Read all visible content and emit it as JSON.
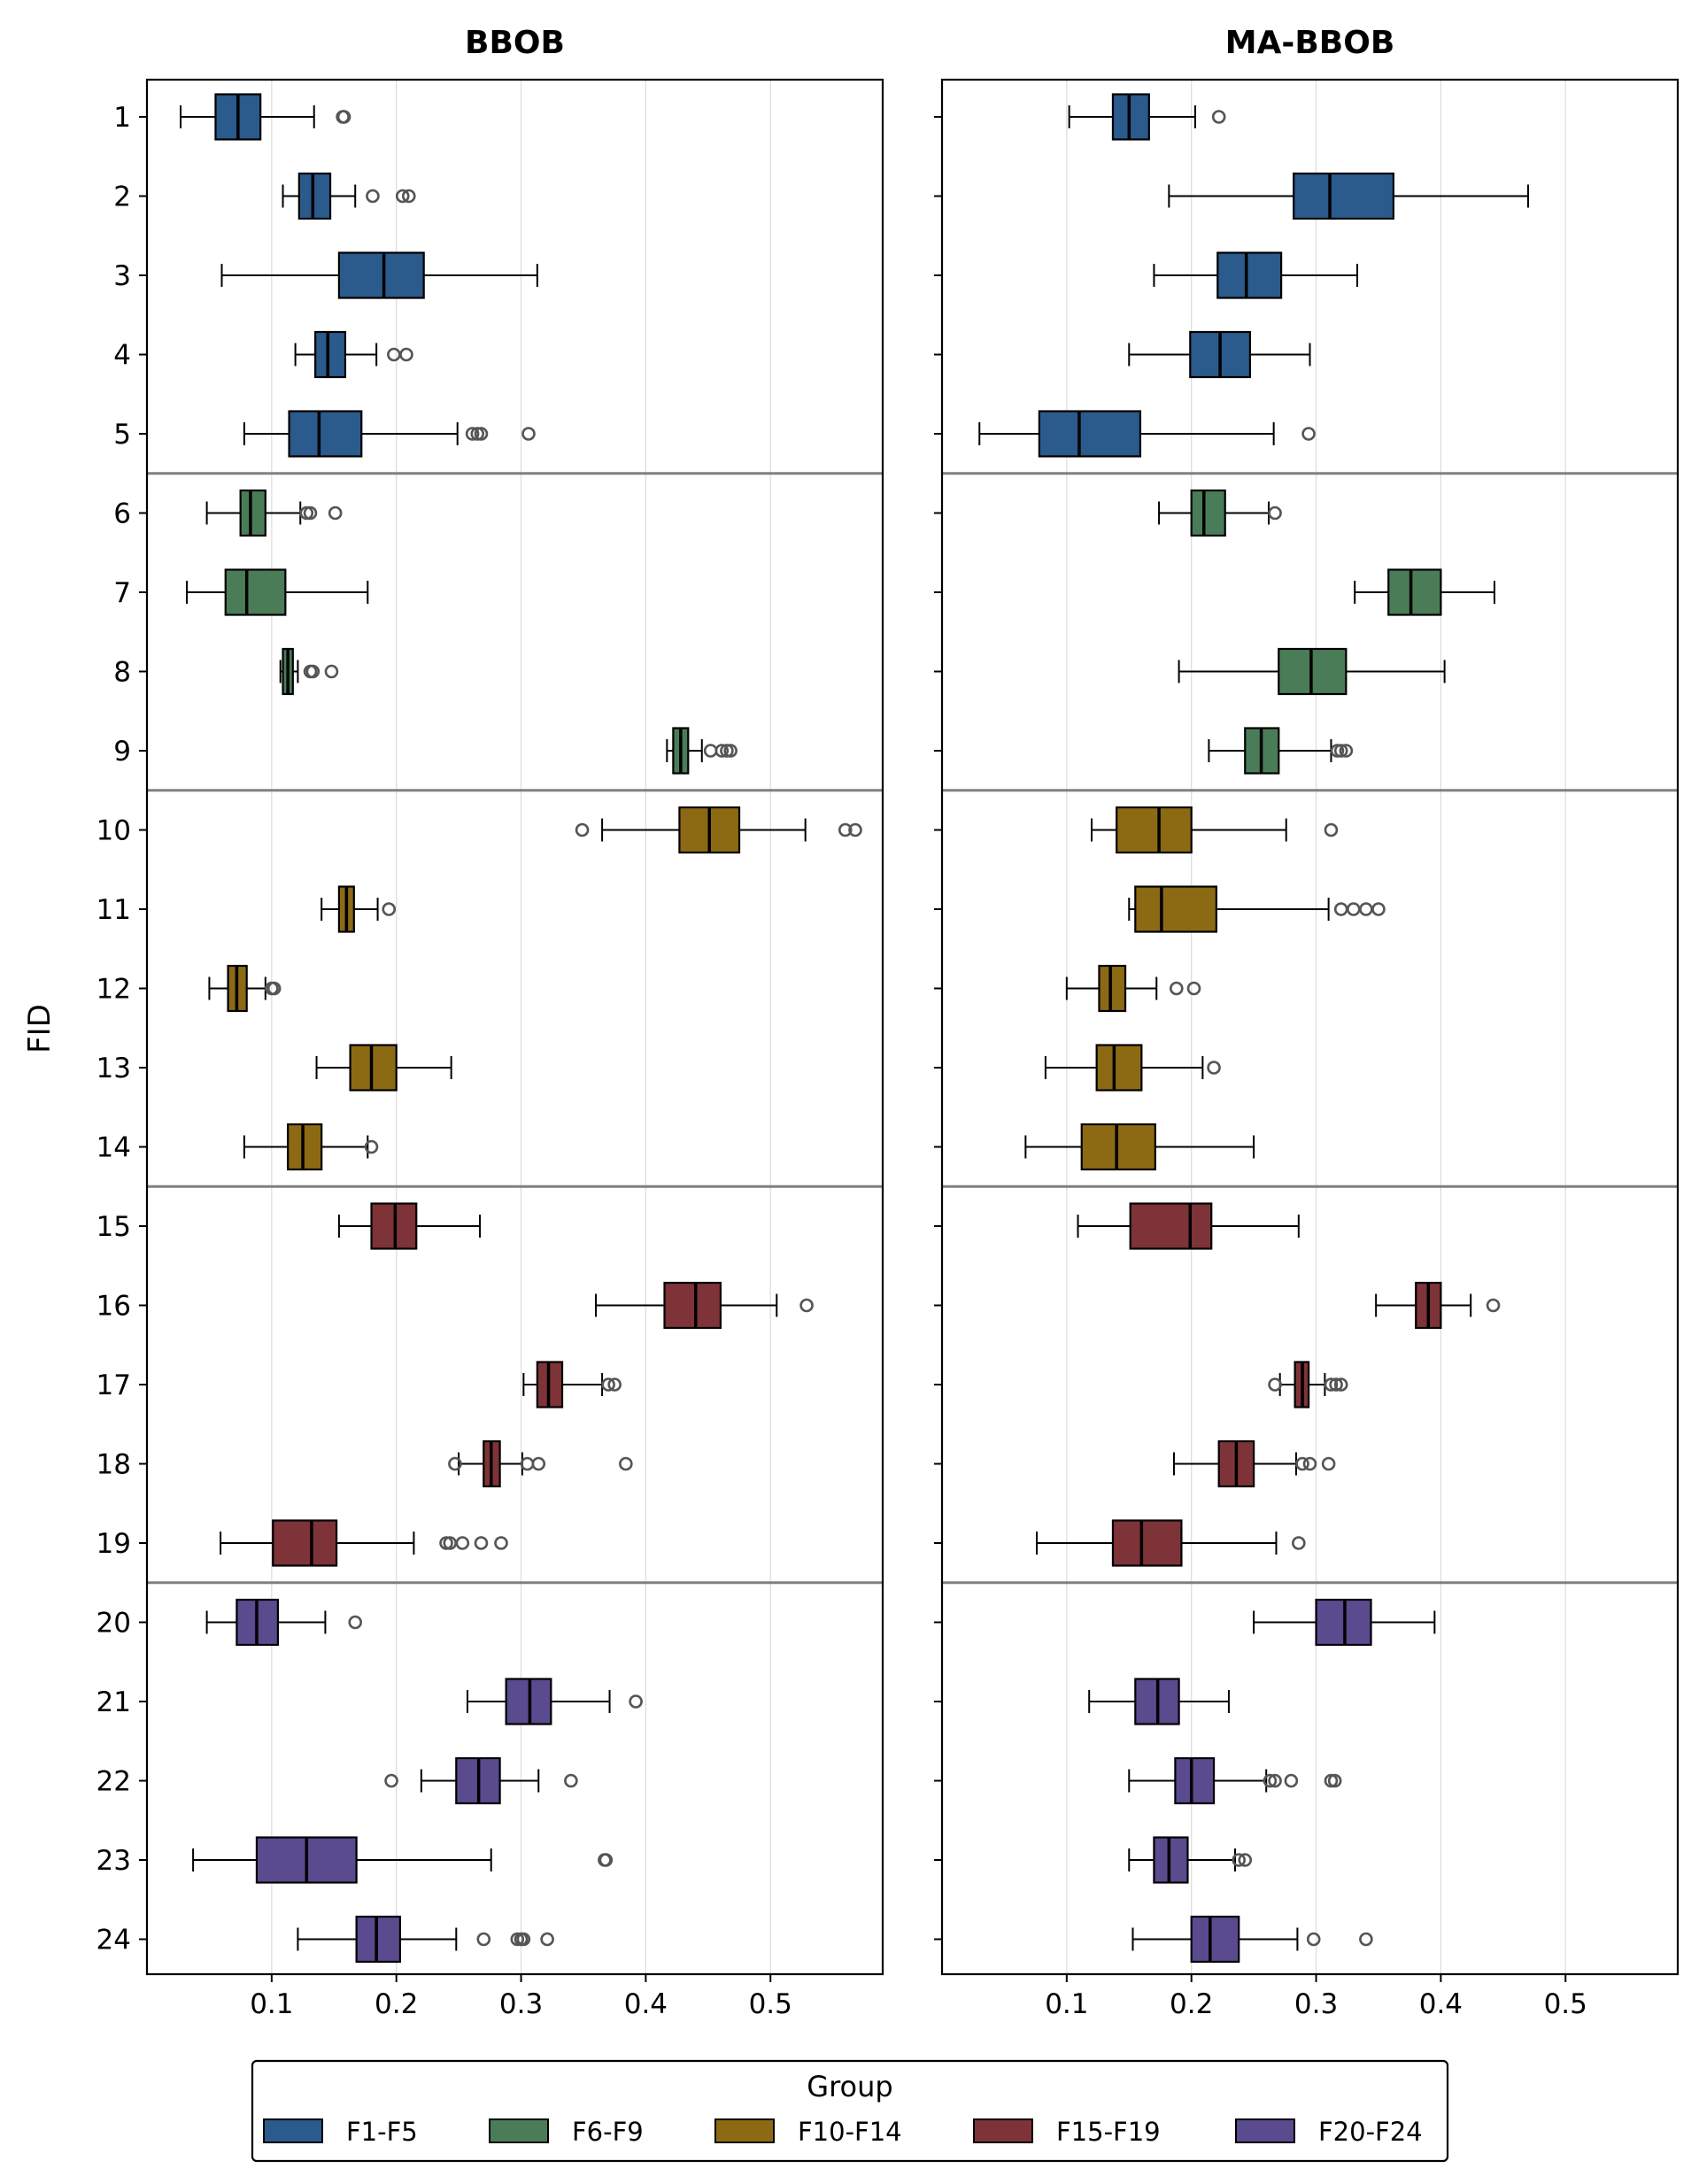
{
  "chart_data": {
    "type": "boxplot",
    "ylabel": "FID",
    "xlim": [
      0.0,
      0.59
    ],
    "xticks": [
      "0.1",
      "0.2",
      "0.3",
      "0.4",
      "0.5"
    ],
    "xtick_values": [
      0.1,
      0.2,
      0.3,
      0.4,
      0.5
    ],
    "grid": "vertical",
    "fids": [
      "1",
      "2",
      "3",
      "4",
      "5",
      "6",
      "7",
      "8",
      "9",
      "10",
      "11",
      "12",
      "13",
      "14",
      "15",
      "16",
      "17",
      "18",
      "19",
      "20",
      "21",
      "22",
      "23",
      "24"
    ],
    "group_separators_after_fid": [
      5,
      9,
      14,
      19
    ],
    "legend": {
      "title": "Group",
      "placement": "bottom-center",
      "entries": [
        {
          "label": "F1-F5",
          "color": "#2b5a8d"
        },
        {
          "label": "F6-F9",
          "color": "#4a7d57"
        },
        {
          "label": "F10-F14",
          "color": "#8c6a14"
        },
        {
          "label": "F15-F19",
          "color": "#7d3337"
        },
        {
          "label": "F20-F24",
          "color": "#5a4a8e"
        }
      ]
    },
    "panels": [
      {
        "title": "BBOB",
        "boxes": [
          {
            "fid": "1",
            "group": 0,
            "wl": 0.027,
            "q1": 0.055,
            "med": 0.073,
            "q3": 0.091,
            "wh": 0.134,
            "outliers": [
              0.157,
              0.158
            ]
          },
          {
            "fid": "2",
            "group": 0,
            "wl": 0.109,
            "q1": 0.122,
            "med": 0.133,
            "q3": 0.147,
            "wh": 0.167,
            "outliers": [
              0.181,
              0.205,
              0.21
            ]
          },
          {
            "fid": "3",
            "group": 0,
            "wl": 0.06,
            "q1": 0.154,
            "med": 0.19,
            "q3": 0.222,
            "wh": 0.313,
            "outliers": []
          },
          {
            "fid": "4",
            "group": 0,
            "wl": 0.119,
            "q1": 0.135,
            "med": 0.145,
            "q3": 0.159,
            "wh": 0.184,
            "outliers": [
              0.198,
              0.208
            ]
          },
          {
            "fid": "5",
            "group": 0,
            "wl": 0.078,
            "q1": 0.114,
            "med": 0.138,
            "q3": 0.172,
            "wh": 0.249,
            "outliers": [
              0.261,
              0.265,
              0.268,
              0.306
            ]
          },
          {
            "fid": "6",
            "group": 1,
            "wl": 0.048,
            "q1": 0.075,
            "med": 0.083,
            "q3": 0.095,
            "wh": 0.123,
            "outliers": [
              0.128,
              0.131,
              0.151
            ]
          },
          {
            "fid": "7",
            "group": 1,
            "wl": 0.032,
            "q1": 0.063,
            "med": 0.08,
            "q3": 0.111,
            "wh": 0.177,
            "outliers": []
          },
          {
            "fid": "8",
            "group": 1,
            "wl": 0.107,
            "q1": 0.109,
            "med": 0.113,
            "q3": 0.117,
            "wh": 0.121,
            "outliers": [
              0.131,
              0.133,
              0.148
            ]
          },
          {
            "fid": "9",
            "group": 1,
            "wl": 0.417,
            "q1": 0.422,
            "med": 0.428,
            "q3": 0.434,
            "wh": 0.445,
            "outliers": [
              0.452,
              0.461,
              0.465,
              0.468
            ]
          },
          {
            "fid": "10",
            "group": 2,
            "wl": 0.365,
            "q1": 0.427,
            "med": 0.451,
            "q3": 0.475,
            "wh": 0.528,
            "outliers": [
              0.349,
              0.56,
              0.568
            ]
          },
          {
            "fid": "11",
            "group": 2,
            "wl": 0.14,
            "q1": 0.154,
            "med": 0.16,
            "q3": 0.166,
            "wh": 0.185,
            "outliers": [
              0.194
            ]
          },
          {
            "fid": "12",
            "group": 2,
            "wl": 0.05,
            "q1": 0.065,
            "med": 0.072,
            "q3": 0.08,
            "wh": 0.095,
            "outliers": [
              0.1,
              0.102
            ]
          },
          {
            "fid": "13",
            "group": 2,
            "wl": 0.136,
            "q1": 0.163,
            "med": 0.18,
            "q3": 0.2,
            "wh": 0.244,
            "outliers": []
          },
          {
            "fid": "14",
            "group": 2,
            "wl": 0.078,
            "q1": 0.113,
            "med": 0.125,
            "q3": 0.14,
            "wh": 0.177,
            "outliers": [
              0.18
            ]
          },
          {
            "fid": "15",
            "group": 3,
            "wl": 0.154,
            "q1": 0.18,
            "med": 0.199,
            "q3": 0.216,
            "wh": 0.267,
            "outliers": []
          },
          {
            "fid": "16",
            "group": 3,
            "wl": 0.36,
            "q1": 0.415,
            "med": 0.44,
            "q3": 0.46,
            "wh": 0.505,
            "outliers": [
              0.529
            ]
          },
          {
            "fid": "17",
            "group": 3,
            "wl": 0.302,
            "q1": 0.313,
            "med": 0.322,
            "q3": 0.333,
            "wh": 0.365,
            "outliers": [
              0.37,
              0.375
            ]
          },
          {
            "fid": "18",
            "group": 3,
            "wl": 0.25,
            "q1": 0.27,
            "med": 0.276,
            "q3": 0.283,
            "wh": 0.301,
            "outliers": [
              0.247,
              0.305,
              0.314,
              0.384
            ]
          },
          {
            "fid": "19",
            "group": 3,
            "wl": 0.059,
            "q1": 0.101,
            "med": 0.132,
            "q3": 0.152,
            "wh": 0.214,
            "outliers": [
              0.24,
              0.243,
              0.253,
              0.268,
              0.284
            ]
          },
          {
            "fid": "20",
            "group": 4,
            "wl": 0.048,
            "q1": 0.072,
            "med": 0.088,
            "q3": 0.105,
            "wh": 0.143,
            "outliers": [
              0.167
            ]
          },
          {
            "fid": "21",
            "group": 4,
            "wl": 0.257,
            "q1": 0.288,
            "med": 0.307,
            "q3": 0.324,
            "wh": 0.371,
            "outliers": [
              0.392
            ]
          },
          {
            "fid": "22",
            "group": 4,
            "wl": 0.22,
            "q1": 0.248,
            "med": 0.266,
            "q3": 0.283,
            "wh": 0.314,
            "outliers": [
              0.196,
              0.34
            ]
          },
          {
            "fid": "23",
            "group": 4,
            "wl": 0.037,
            "q1": 0.088,
            "med": 0.128,
            "q3": 0.168,
            "wh": 0.276,
            "outliers": [
              0.367,
              0.368
            ]
          },
          {
            "fid": "24",
            "group": 4,
            "wl": 0.121,
            "q1": 0.168,
            "med": 0.184,
            "q3": 0.203,
            "wh": 0.248,
            "outliers": [
              0.27,
              0.297,
              0.3,
              0.302,
              0.321
            ]
          }
        ]
      },
      {
        "title": "MA-BBOB",
        "boxes": [
          {
            "fid": "1",
            "group": 0,
            "wl": 0.102,
            "q1": 0.137,
            "med": 0.15,
            "q3": 0.166,
            "wh": 0.203,
            "outliers": [
              0.222
            ]
          },
          {
            "fid": "2",
            "group": 0,
            "wl": 0.182,
            "q1": 0.282,
            "med": 0.311,
            "q3": 0.362,
            "wh": 0.47,
            "outliers": []
          },
          {
            "fid": "3",
            "group": 0,
            "wl": 0.17,
            "q1": 0.221,
            "med": 0.244,
            "q3": 0.272,
            "wh": 0.333,
            "outliers": []
          },
          {
            "fid": "4",
            "group": 0,
            "wl": 0.15,
            "q1": 0.199,
            "med": 0.223,
            "q3": 0.247,
            "wh": 0.295,
            "outliers": []
          },
          {
            "fid": "5",
            "group": 0,
            "wl": 0.03,
            "q1": 0.078,
            "med": 0.11,
            "q3": 0.159,
            "wh": 0.266,
            "outliers": [
              0.294
            ]
          },
          {
            "fid": "6",
            "group": 1,
            "wl": 0.174,
            "q1": 0.2,
            "med": 0.21,
            "q3": 0.227,
            "wh": 0.262,
            "outliers": [
              0.267
            ]
          },
          {
            "fid": "7",
            "group": 1,
            "wl": 0.331,
            "q1": 0.358,
            "med": 0.376,
            "q3": 0.4,
            "wh": 0.443,
            "outliers": []
          },
          {
            "fid": "8",
            "group": 1,
            "wl": 0.19,
            "q1": 0.27,
            "med": 0.296,
            "q3": 0.324,
            "wh": 0.403,
            "outliers": []
          },
          {
            "fid": "9",
            "group": 1,
            "wl": 0.214,
            "q1": 0.243,
            "med": 0.256,
            "q3": 0.27,
            "wh": 0.312,
            "outliers": [
              0.317,
              0.32,
              0.324
            ]
          },
          {
            "fid": "10",
            "group": 2,
            "wl": 0.12,
            "q1": 0.14,
            "med": 0.174,
            "q3": 0.2,
            "wh": 0.276,
            "outliers": [
              0.312
            ]
          },
          {
            "fid": "11",
            "group": 2,
            "wl": 0.15,
            "q1": 0.155,
            "med": 0.176,
            "q3": 0.22,
            "wh": 0.31,
            "outliers": [
              0.32,
              0.33,
              0.34,
              0.35
            ]
          },
          {
            "fid": "12",
            "group": 2,
            "wl": 0.1,
            "q1": 0.126,
            "med": 0.135,
            "q3": 0.147,
            "wh": 0.172,
            "outliers": [
              0.188,
              0.202
            ]
          },
          {
            "fid": "13",
            "group": 2,
            "wl": 0.083,
            "q1": 0.124,
            "med": 0.138,
            "q3": 0.16,
            "wh": 0.209,
            "outliers": [
              0.218
            ]
          },
          {
            "fid": "14",
            "group": 2,
            "wl": 0.067,
            "q1": 0.112,
            "med": 0.14,
            "q3": 0.171,
            "wh": 0.25,
            "outliers": []
          },
          {
            "fid": "15",
            "group": 3,
            "wl": 0.109,
            "q1": 0.151,
            "med": 0.199,
            "q3": 0.216,
            "wh": 0.286,
            "outliers": []
          },
          {
            "fid": "16",
            "group": 3,
            "wl": 0.348,
            "q1": 0.38,
            "med": 0.39,
            "q3": 0.4,
            "wh": 0.424,
            "outliers": [
              0.442
            ]
          },
          {
            "fid": "17",
            "group": 3,
            "wl": 0.271,
            "q1": 0.283,
            "med": 0.289,
            "q3": 0.294,
            "wh": 0.307,
            "outliers": [
              0.267,
              0.312,
              0.316,
              0.32
            ]
          },
          {
            "fid": "18",
            "group": 3,
            "wl": 0.186,
            "q1": 0.222,
            "med": 0.236,
            "q3": 0.25,
            "wh": 0.284,
            "outliers": [
              0.289,
              0.295,
              0.31
            ]
          },
          {
            "fid": "19",
            "group": 3,
            "wl": 0.076,
            "q1": 0.137,
            "med": 0.16,
            "q3": 0.192,
            "wh": 0.268,
            "outliers": [
              0.286
            ]
          },
          {
            "fid": "20",
            "group": 4,
            "wl": 0.25,
            "q1": 0.3,
            "med": 0.323,
            "q3": 0.344,
            "wh": 0.395,
            "outliers": []
          },
          {
            "fid": "21",
            "group": 4,
            "wl": 0.118,
            "q1": 0.155,
            "med": 0.173,
            "q3": 0.19,
            "wh": 0.23,
            "outliers": []
          },
          {
            "fid": "22",
            "group": 4,
            "wl": 0.15,
            "q1": 0.187,
            "med": 0.2,
            "q3": 0.218,
            "wh": 0.26,
            "outliers": [
              0.263,
              0.267,
              0.28,
              0.312,
              0.315
            ]
          },
          {
            "fid": "23",
            "group": 4,
            "wl": 0.15,
            "q1": 0.17,
            "med": 0.182,
            "q3": 0.197,
            "wh": 0.235,
            "outliers": [
              0.238,
              0.243
            ]
          },
          {
            "fid": "24",
            "group": 4,
            "wl": 0.153,
            "q1": 0.2,
            "med": 0.215,
            "q3": 0.238,
            "wh": 0.285,
            "outliers": [
              0.298,
              0.34
            ]
          }
        ]
      }
    ]
  }
}
